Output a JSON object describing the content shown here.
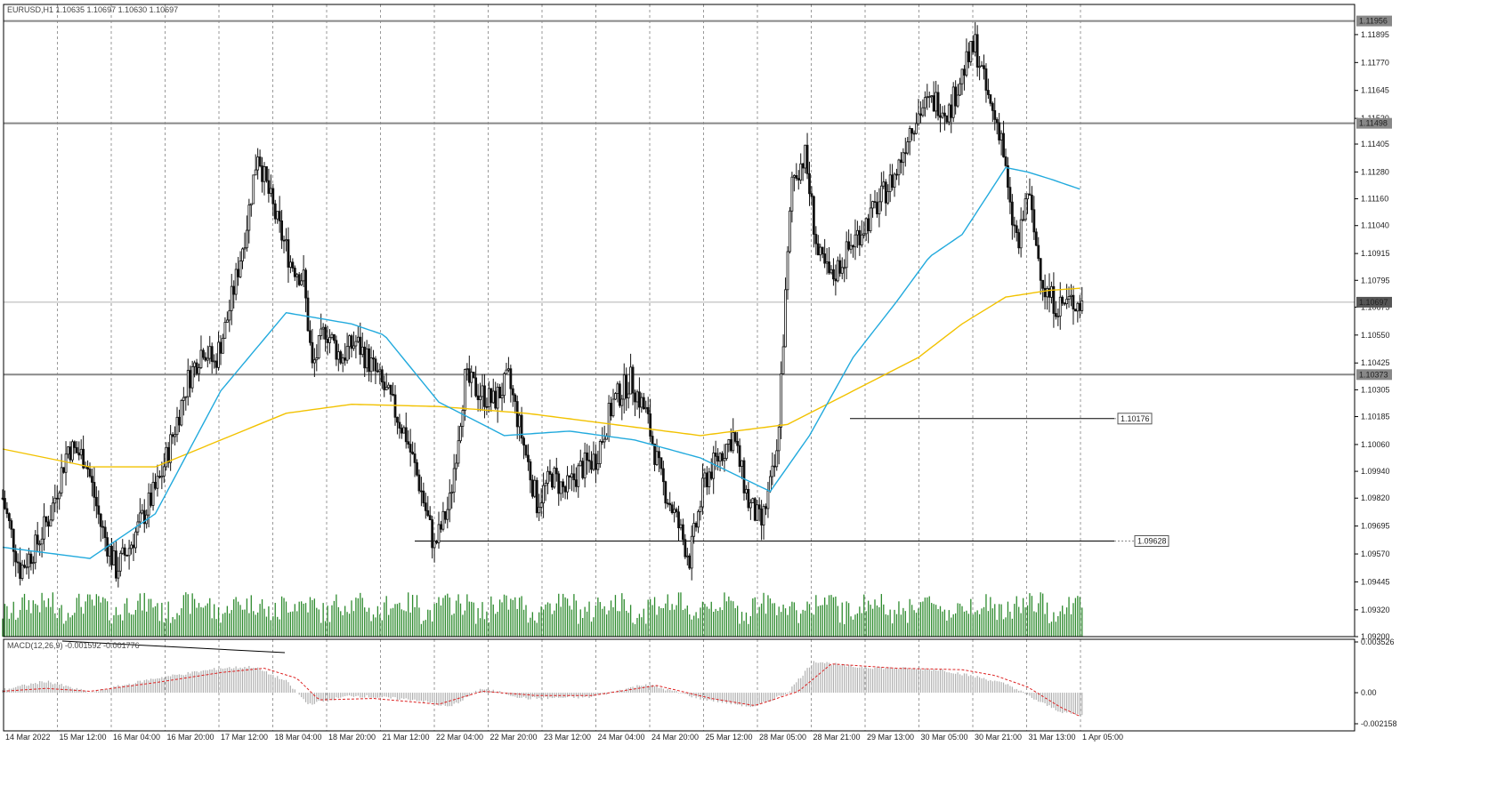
{
  "chart_data": {
    "type": "candlestick",
    "header": "EURUSD,H1  1.10635 1.10697 1.10630 1.10697",
    "price_axis": {
      "range": [
        1.092,
        1.1203
      ],
      "ticks": [
        "1.11895",
        "1.11770",
        "1.11645",
        "1.11520",
        "1.11405",
        "1.11280",
        "1.11160",
        "1.11040",
        "1.10915",
        "1.10795",
        "1.10675",
        "1.10550",
        "1.10425",
        "1.10305",
        "1.10185",
        "1.10060",
        "1.09940",
        "1.09820",
        "1.09695",
        "1.09570",
        "1.09445",
        "1.09320",
        "1.09200"
      ]
    },
    "time_labels": [
      "14 Mar 2022",
      "15 Mar 12:00",
      "16 Mar 04:00",
      "16 Mar 20:00",
      "17 Mar 12:00",
      "18 Mar 04:00",
      "18 Mar 20:00",
      "21 Mar 12:00",
      "22 Mar 04:00",
      "22 Mar 20:00",
      "23 Mar 12:00",
      "24 Mar 04:00",
      "24 Mar 20:00",
      "25 Mar 12:00",
      "28 Mar 05:00",
      "28 Mar 21:00",
      "29 Mar 13:00",
      "30 Mar 05:00",
      "30 Mar 21:00",
      "31 Mar 13:00",
      "1 Apr 05:00"
    ],
    "price_levels": [
      {
        "label": "1.11956",
        "value": 1.11956
      },
      {
        "label": "1.11498",
        "value": 1.11498
      },
      {
        "label": "1.10373",
        "value": 1.10373
      }
    ],
    "current_price": {
      "label": "1.10697",
      "value": 1.10697
    },
    "annotations": [
      {
        "label": "1.10176",
        "value": 1.10176
      },
      {
        "label": "1.09628",
        "value": 1.09628
      }
    ],
    "close_path": [
      [
        0,
        1.0982
      ],
      [
        8,
        1.095
      ],
      [
        15,
        1.096
      ],
      [
        22,
        1.0975
      ],
      [
        30,
        1.1005
      ],
      [
        38,
        1.1
      ],
      [
        45,
        1.097
      ],
      [
        52,
        1.095
      ],
      [
        58,
        1.096
      ],
      [
        65,
        1.0975
      ],
      [
        72,
        1.099
      ],
      [
        78,
        1.101
      ],
      [
        85,
        1.1035
      ],
      [
        92,
        1.105
      ],
      [
        97,
        1.1042
      ],
      [
        102,
        1.1058
      ],
      [
        107,
        1.108
      ],
      [
        112,
        1.1105
      ],
      [
        117,
        1.1138
      ],
      [
        120,
        1.1125
      ],
      [
        126,
        1.1105
      ],
      [
        132,
        1.1088
      ],
      [
        138,
        1.108
      ],
      [
        142,
        1.104
      ],
      [
        148,
        1.1058
      ],
      [
        155,
        1.1045
      ],
      [
        162,
        1.1052
      ],
      [
        170,
        1.104
      ],
      [
        178,
        1.1025
      ],
      [
        185,
        1.101
      ],
      [
        192,
        1.0985
      ],
      [
        198,
        1.096
      ],
      [
        205,
        1.098
      ],
      [
        212,
        1.1035
      ],
      [
        218,
        1.103
      ],
      [
        225,
        1.1025
      ],
      [
        232,
        1.1035
      ],
      [
        238,
        1.101
      ],
      [
        245,
        1.098
      ],
      [
        252,
        1.0992
      ],
      [
        258,
        1.0985
      ],
      [
        265,
        1.0995
      ],
      [
        272,
        1.1
      ],
      [
        280,
        1.1025
      ],
      [
        288,
        1.1035
      ],
      [
        295,
        1.102
      ],
      [
        302,
        1.099
      ],
      [
        308,
        1.0975
      ],
      [
        315,
        1.0955
      ],
      [
        322,
        1.099
      ],
      [
        328,
        1.1
      ],
      [
        335,
        1.101
      ],
      [
        342,
        1.098
      ],
      [
        348,
        1.097
      ],
      [
        355,
        1.1
      ],
      [
        362,
        1.1125
      ],
      [
        368,
        1.1135
      ],
      [
        374,
        1.109
      ],
      [
        380,
        1.108
      ],
      [
        386,
        1.109
      ],
      [
        392,
        1.11
      ],
      [
        398,
        1.1108
      ],
      [
        404,
        1.1118
      ],
      [
        410,
        1.1128
      ],
      [
        416,
        1.1148
      ],
      [
        422,
        1.1157
      ],
      [
        428,
        1.116
      ],
      [
        434,
        1.1155
      ],
      [
        440,
        1.1172
      ],
      [
        446,
        1.1185
      ],
      [
        452,
        1.116
      ],
      [
        458,
        1.1145
      ],
      [
        462,
        1.111
      ],
      [
        466,
        1.1095
      ],
      [
        470,
        1.112
      ],
      [
        474,
        1.1095
      ],
      [
        478,
        1.1075
      ],
      [
        484,
        1.1068
      ],
      [
        490,
        1.107
      ],
      [
        495,
        1.1069
      ]
    ],
    "ema_blue": [
      [
        0,
        1.096
      ],
      [
        40,
        1.0955
      ],
      [
        70,
        1.0975
      ],
      [
        100,
        1.103
      ],
      [
        130,
        1.1065
      ],
      [
        160,
        1.106
      ],
      [
        175,
        1.1055
      ],
      [
        200,
        1.1025
      ],
      [
        230,
        1.101
      ],
      [
        260,
        1.1012
      ],
      [
        290,
        1.1008
      ],
      [
        320,
        1.1
      ],
      [
        352,
        1.0985
      ],
      [
        370,
        1.101
      ],
      [
        390,
        1.1045
      ],
      [
        410,
        1.107
      ],
      [
        425,
        1.109
      ],
      [
        440,
        1.11
      ],
      [
        450,
        1.1115
      ],
      [
        460,
        1.113
      ],
      [
        470,
        1.1128
      ],
      [
        480,
        1.1125
      ],
      [
        495,
        1.112
      ]
    ],
    "ema_yellow": [
      [
        0,
        1.1004
      ],
      [
        40,
        1.0996
      ],
      [
        70,
        1.0996
      ],
      [
        100,
        1.1008
      ],
      [
        130,
        1.102
      ],
      [
        160,
        1.1024
      ],
      [
        200,
        1.1023
      ],
      [
        240,
        1.102
      ],
      [
        280,
        1.1015
      ],
      [
        320,
        1.101
      ],
      [
        360,
        1.1015
      ],
      [
        380,
        1.1025
      ],
      [
        400,
        1.1035
      ],
      [
        420,
        1.1045
      ],
      [
        440,
        1.106
      ],
      [
        460,
        1.1072
      ],
      [
        480,
        1.1075
      ],
      [
        495,
        1.1076
      ]
    ],
    "volume_panel": {
      "color": "#2e8b2e"
    },
    "macd": {
      "label": "MACD(12,26,9) -0.001592 -0.001776",
      "ticks": [
        "0.003526",
        "0.00",
        "-0.002158"
      ],
      "range": [
        -0.002158,
        0.003526
      ],
      "hist_path": [
        [
          0,
          0.0002
        ],
        [
          20,
          0.0008
        ],
        [
          40,
          0.0
        ],
        [
          70,
          0.001
        ],
        [
          100,
          0.0017
        ],
        [
          115,
          0.0018
        ],
        [
          130,
          0.0008
        ],
        [
          140,
          -0.0008
        ],
        [
          160,
          -0.0002
        ],
        [
          190,
          -0.0005
        ],
        [
          205,
          -0.001
        ],
        [
          220,
          0.0003
        ],
        [
          240,
          -0.0004
        ],
        [
          270,
          -0.0003
        ],
        [
          295,
          0.0006
        ],
        [
          320,
          -0.0004
        ],
        [
          345,
          -0.001
        ],
        [
          360,
          0.0
        ],
        [
          372,
          0.0022
        ],
        [
          390,
          0.0018
        ],
        [
          430,
          0.0016
        ],
        [
          450,
          0.001
        ],
        [
          462,
          0.0005
        ],
        [
          475,
          -0.0006
        ],
        [
          485,
          -0.0013
        ],
        [
          495,
          -0.0016
        ]
      ],
      "signal_path": [
        [
          0,
          0.0001
        ],
        [
          20,
          0.0003
        ],
        [
          40,
          0.0001
        ],
        [
          70,
          0.0007
        ],
        [
          100,
          0.0014
        ],
        [
          120,
          0.0017
        ],
        [
          135,
          0.001
        ],
        [
          145,
          -0.0005
        ],
        [
          170,
          -0.0004
        ],
        [
          200,
          -0.0008
        ],
        [
          220,
          0.0001
        ],
        [
          245,
          -0.0002
        ],
        [
          270,
          -0.0002
        ],
        [
          300,
          0.0005
        ],
        [
          325,
          -0.0004
        ],
        [
          345,
          -0.0009
        ],
        [
          365,
          0.0001
        ],
        [
          380,
          0.002
        ],
        [
          410,
          0.0017
        ],
        [
          440,
          0.0016
        ],
        [
          455,
          0.0012
        ],
        [
          470,
          0.0004
        ],
        [
          485,
          -0.001
        ],
        [
          495,
          -0.0017
        ]
      ]
    },
    "colors": {
      "candle": "#111111",
      "ema_fast": "#22aadd",
      "ema_slow": "#f2c200",
      "macd_hist": "#b0b0b0",
      "macd_signal": "#dd2222",
      "level": "#888888",
      "grid": "#9a9a9a"
    }
  }
}
